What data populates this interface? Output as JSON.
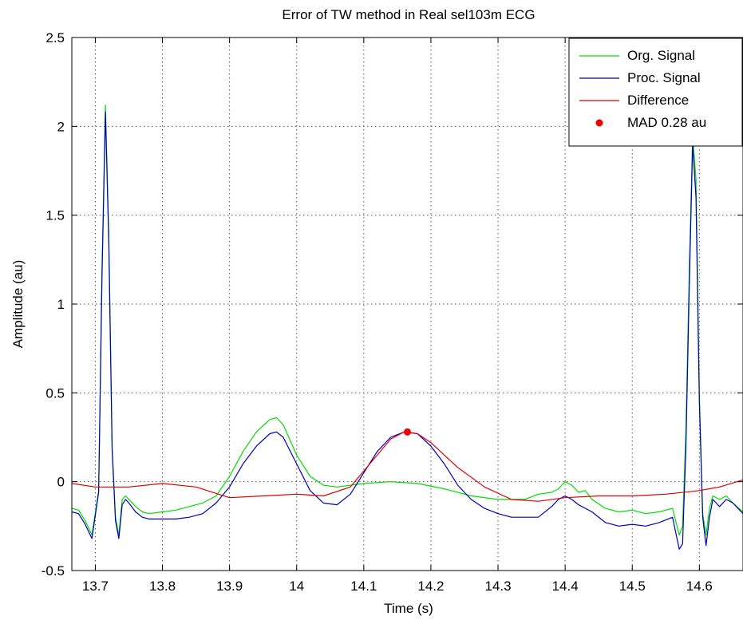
{
  "chart_data": {
    "type": "line",
    "title": "Error of TW method in Real sel103m ECG",
    "xlabel": "Time (s)",
    "ylabel": "Amplitude (au)",
    "xlim": [
      13.665,
      14.665
    ],
    "ylim": [
      -0.5,
      2.5
    ],
    "xticks": [
      13.7,
      13.8,
      13.9,
      14.0,
      14.1,
      14.2,
      14.3,
      14.4,
      14.5,
      14.6
    ],
    "xtick_labels": [
      "13.7",
      "13.8",
      "13.9",
      "14",
      "14.1",
      "14.2",
      "14.3",
      "14.4",
      "14.5",
      "14.6"
    ],
    "yticks": [
      -0.5,
      0,
      0.5,
      1,
      1.5,
      2,
      2.5
    ],
    "ytick_labels": [
      "-0.5",
      "0",
      "0.5",
      "1",
      "1.5",
      "2",
      "2.5"
    ],
    "grid": true,
    "legend_position": "top-right",
    "series": [
      {
        "name": "Org. Signal",
        "color": "#00dd00",
        "x": [
          13.665,
          13.675,
          13.685,
          13.695,
          13.705,
          13.71,
          13.715,
          13.72,
          13.725,
          13.73,
          13.735,
          13.74,
          13.745,
          13.75,
          13.76,
          13.77,
          13.78,
          13.8,
          13.82,
          13.84,
          13.86,
          13.88,
          13.9,
          13.92,
          13.94,
          13.96,
          13.97,
          13.98,
          14.0,
          14.02,
          14.04,
          14.06,
          14.1,
          14.14,
          14.18,
          14.22,
          14.26,
          14.3,
          14.34,
          14.36,
          14.38,
          14.39,
          14.4,
          14.41,
          14.42,
          14.43,
          14.44,
          14.46,
          14.48,
          14.5,
          14.52,
          14.54,
          14.56,
          14.57,
          14.575,
          14.58,
          14.585,
          14.59,
          14.595,
          14.6,
          14.605,
          14.61,
          14.615,
          14.62,
          14.63,
          14.64,
          14.65,
          14.665
        ],
        "y": [
          -0.15,
          -0.16,
          -0.22,
          -0.3,
          -0.05,
          1.2,
          2.12,
          1.4,
          0.2,
          -0.2,
          -0.3,
          -0.1,
          -0.08,
          -0.1,
          -0.14,
          -0.17,
          -0.18,
          -0.17,
          -0.16,
          -0.14,
          -0.12,
          -0.08,
          0.03,
          0.17,
          0.28,
          0.35,
          0.36,
          0.32,
          0.15,
          0.03,
          -0.02,
          -0.03,
          -0.01,
          0.0,
          -0.01,
          -0.04,
          -0.08,
          -0.1,
          -0.1,
          -0.07,
          -0.06,
          -0.04,
          0.0,
          -0.02,
          -0.06,
          -0.05,
          -0.1,
          -0.15,
          -0.17,
          -0.16,
          -0.18,
          -0.17,
          -0.15,
          -0.3,
          -0.25,
          0.3,
          1.2,
          1.95,
          1.7,
          0.5,
          -0.18,
          -0.3,
          -0.15,
          -0.08,
          -0.1,
          -0.08,
          -0.12,
          -0.17
        ]
      },
      {
        "name": "Proc. Signal",
        "color": "#0000bb",
        "x": [
          13.665,
          13.675,
          13.685,
          13.695,
          13.705,
          13.71,
          13.715,
          13.72,
          13.725,
          13.73,
          13.735,
          13.74,
          13.745,
          13.75,
          13.76,
          13.77,
          13.78,
          13.8,
          13.82,
          13.84,
          13.86,
          13.88,
          13.9,
          13.92,
          13.94,
          13.96,
          13.97,
          13.98,
          14.0,
          14.02,
          14.04,
          14.06,
          14.08,
          14.1,
          14.12,
          14.14,
          14.16,
          14.18,
          14.2,
          14.22,
          14.24,
          14.26,
          14.28,
          14.3,
          14.32,
          14.34,
          14.36,
          14.38,
          14.39,
          14.4,
          14.41,
          14.42,
          14.44,
          14.46,
          14.48,
          14.5,
          14.52,
          14.54,
          14.56,
          14.57,
          14.575,
          14.58,
          14.585,
          14.59,
          14.595,
          14.6,
          14.605,
          14.61,
          14.615,
          14.62,
          14.63,
          14.64,
          14.65,
          14.665
        ],
        "y": [
          -0.17,
          -0.18,
          -0.24,
          -0.32,
          -0.06,
          1.15,
          2.08,
          1.35,
          0.18,
          -0.22,
          -0.32,
          -0.13,
          -0.1,
          -0.12,
          -0.17,
          -0.2,
          -0.21,
          -0.21,
          -0.21,
          -0.2,
          -0.18,
          -0.12,
          -0.03,
          0.1,
          0.2,
          0.27,
          0.28,
          0.25,
          0.1,
          -0.05,
          -0.12,
          -0.13,
          -0.07,
          0.05,
          0.17,
          0.25,
          0.28,
          0.27,
          0.2,
          0.1,
          -0.02,
          -0.1,
          -0.15,
          -0.18,
          -0.2,
          -0.2,
          -0.2,
          -0.14,
          -0.1,
          -0.08,
          -0.1,
          -0.13,
          -0.17,
          -0.23,
          -0.25,
          -0.24,
          -0.25,
          -0.23,
          -0.2,
          -0.38,
          -0.35,
          0.2,
          1.1,
          1.9,
          1.6,
          0.45,
          -0.2,
          -0.36,
          -0.2,
          -0.1,
          -0.14,
          -0.1,
          -0.12,
          -0.18
        ]
      },
      {
        "name": "Difference",
        "color": "#dd0000",
        "x": [
          13.665,
          13.7,
          13.75,
          13.8,
          13.85,
          13.9,
          13.95,
          14.0,
          14.04,
          14.08,
          14.12,
          14.14,
          14.16,
          14.18,
          14.2,
          14.24,
          14.28,
          14.32,
          14.36,
          14.4,
          14.45,
          14.5,
          14.55,
          14.6,
          14.63,
          14.665
        ],
        "y": [
          -0.01,
          -0.03,
          -0.03,
          -0.01,
          -0.03,
          -0.09,
          -0.08,
          -0.07,
          -0.08,
          -0.03,
          0.15,
          0.24,
          0.28,
          0.27,
          0.22,
          0.08,
          -0.03,
          -0.1,
          -0.11,
          -0.09,
          -0.08,
          -0.08,
          -0.07,
          -0.05,
          -0.03,
          0.01
        ]
      }
    ],
    "markers": [
      {
        "name": "MAD 0.28 au",
        "color": "#ee0000",
        "x": 14.165,
        "y": 0.28
      }
    ]
  }
}
